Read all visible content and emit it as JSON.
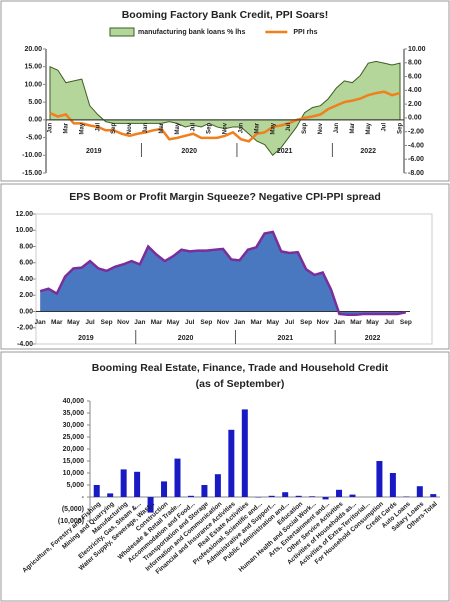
{
  "chart_data": [
    {
      "type": "line",
      "title": "Booming Factory Bank Credit, PPI Soars!",
      "legend": "top",
      "categories": [
        "Jan",
        null,
        "Mar",
        null,
        "May",
        null,
        "Jul",
        null,
        "Sep",
        null,
        "Nov",
        null,
        "Jan",
        null,
        "Mar",
        null,
        "May",
        null,
        "Jul",
        null,
        "Sep",
        null,
        "Nov",
        null,
        "Jan",
        null,
        "Mar",
        null,
        "May",
        null,
        "Jul",
        null,
        "Sep",
        null,
        "Nov",
        null,
        "Jan",
        null,
        "Mar",
        null,
        "May",
        null,
        "Jul",
        null,
        "Sep"
      ],
      "x_groups": [
        "2019",
        "2020",
        "2021",
        "2022"
      ],
      "series": [
        {
          "name": "manufacturing bank loans % lhs",
          "type": "area",
          "color": "#b4d69a",
          "line_color": "#3e5e22",
          "values": [
            15,
            14,
            10.5,
            11,
            11.5,
            4,
            1.5,
            -0.5,
            -1,
            -1,
            -1,
            -1,
            -1,
            -1,
            -1,
            -0.5,
            -1,
            -2,
            -1.5,
            -2,
            -1,
            -2,
            -2.5,
            -2,
            -2,
            -4,
            -6,
            -7,
            -10,
            -8,
            -5,
            -2,
            2,
            3.5,
            4,
            6,
            9,
            11,
            10.5,
            12.5,
            16,
            16.5,
            16,
            15.5,
            16
          ]
        },
        {
          "name": "PPI rhs",
          "axis": "y2",
          "color": "#f07f1e",
          "values": [
            0.7,
            0.2,
            0.5,
            -0.8,
            -0.8,
            -1.1,
            -1.3,
            -1.8,
            -1.8,
            -2.3,
            -2.6,
            -2.3,
            -2.1,
            -1.8,
            -1.6,
            -3.1,
            -2.9,
            -2.6,
            -2.3,
            -2.9,
            -2.9,
            -2.9,
            -2.6,
            -2.1,
            -3.1,
            -3.4,
            -2.3,
            -2.1,
            -1.3,
            -1.1,
            -0.8,
            -0.3,
            0,
            0.2,
            0.5,
            1.3,
            1.8,
            2.3,
            2.5,
            2.8,
            3.3,
            3.6,
            3.8,
            3.3,
            3.6
          ]
        }
      ],
      "ylim": [
        -15,
        20
      ],
      "yticks": [
        {
          "value": -15,
          "label": "-15.00"
        },
        {
          "value": -10,
          "label": "-10.00"
        },
        {
          "value": -5,
          "label": "-5.00"
        },
        {
          "value": 0,
          "label": "0.00"
        },
        {
          "value": 5,
          "label": "5.00"
        },
        {
          "value": 10,
          "label": "10.00"
        },
        {
          "value": 15,
          "label": "15.00"
        },
        {
          "value": 20,
          "label": "20.00"
        }
      ],
      "y2lim": [
        -8,
        10
      ],
      "y2ticks": [
        {
          "value": -8,
          "label": "-8.00"
        },
        {
          "value": -6,
          "label": "-6.00"
        },
        {
          "value": -4,
          "label": "-4.00"
        },
        {
          "value": -2,
          "label": "-2.00"
        },
        {
          "value": 0,
          "label": "0.00"
        },
        {
          "value": 2,
          "label": "2.00"
        },
        {
          "value": 4,
          "label": "4.00"
        },
        {
          "value": 6,
          "label": "6.00"
        },
        {
          "value": 8,
          "label": "8.00"
        },
        {
          "value": 10,
          "label": "10.00"
        }
      ]
    },
    {
      "type": "area",
      "title": "EPS Boom or Profit Margin Squeeze? Negative CPI-PPI spread",
      "categories": [
        "Jan",
        null,
        "Mar",
        null,
        "May",
        null,
        "Jul",
        null,
        "Sep",
        null,
        "Nov",
        null,
        "Jan",
        null,
        "Mar",
        null,
        "May",
        null,
        "Jul",
        null,
        "Sep",
        null,
        "Nov",
        null,
        "Jan",
        null,
        "Mar",
        null,
        "May",
        null,
        "Jul",
        null,
        "Sep",
        null,
        "Nov",
        null,
        "Jan",
        null,
        "Mar",
        null,
        "May",
        null,
        "Jul",
        null,
        "Sep"
      ],
      "x_groups": [
        "2019",
        "2020",
        "2021",
        "2022"
      ],
      "color": "#4a78c0",
      "line_color": "#7b2d9b",
      "values": [
        2.5,
        2.8,
        2.2,
        4.3,
        5.3,
        5.4,
        6.2,
        5.3,
        5.0,
        5.5,
        5.8,
        6.2,
        5.8,
        8.0,
        7.0,
        6.2,
        6.8,
        7.6,
        7.4,
        7.5,
        7.5,
        7.6,
        7.7,
        6.4,
        6.3,
        7.6,
        7.9,
        9.6,
        9.8,
        7.4,
        7.2,
        7.3,
        5.2,
        4.5,
        4.8,
        2.7,
        -0.3,
        -0.4,
        -0.4,
        -0.3,
        -0.3,
        -0.3,
        -0.3,
        -0.3,
        -0.1
      ],
      "ylim": [
        -4,
        12
      ],
      "yticks": [
        {
          "value": -4,
          "label": "-4.00"
        },
        {
          "value": -2,
          "label": "-2.00"
        },
        {
          "value": 0,
          "label": "0.00"
        },
        {
          "value": 2,
          "label": "2.00"
        },
        {
          "value": 4,
          "label": "4.00"
        },
        {
          "value": 6,
          "label": "6.00"
        },
        {
          "value": 8,
          "label": "8.00"
        },
        {
          "value": 10,
          "label": "10.00"
        },
        {
          "value": 12,
          "label": "12.00"
        }
      ]
    },
    {
      "type": "bar",
      "title": "Booming Real Estate,  Finance, Trade and Household Credit",
      "subtitle": "(as of September)",
      "color": "#1a1ac4",
      "categories": [
        "Agriculture, Forestry and Fishing",
        "Mining and Quarrying",
        "Manufacturing",
        "Electricity, Gas, Steam &...",
        "Water Supply, Sewerage, Wast...",
        "Construction",
        "Wholesale & Retail Trade...",
        "Accommodation and Food...",
        "Transportation and Storage",
        "Information and Communication",
        "Financial and Insurance Activities",
        "Real Estate Activities",
        "Professional, Scientific and...",
        "Administrative and Support...",
        "Public Administration and...",
        "Education",
        "Human Health and Social Work...",
        "Arts, Entertainment and...",
        "Other Service Activities",
        "Activities of Households as...",
        "Activities of Extra-Territorial...",
        "For Household Consumption",
        "Credit Cards",
        "Auto Loans",
        "Salary Loans",
        "Others-Total"
      ],
      "values": [
        5000,
        1500,
        11500,
        10500,
        -6500,
        6500,
        16000,
        500,
        5000,
        9500,
        28000,
        36500,
        -200,
        500,
        2000,
        500,
        300,
        -1000,
        3000,
        1000,
        0,
        15000,
        10000,
        200,
        4500,
        1200
      ],
      "ylim": [
        -10000,
        40000
      ],
      "yticks": [
        {
          "value": -10000,
          "label": "(10,000)"
        },
        {
          "value": -5000,
          "label": "(5,000)"
        },
        {
          "value": 0,
          "label": "-"
        },
        {
          "value": 5000,
          "label": "5,000"
        },
        {
          "value": 10000,
          "label": "10,000"
        },
        {
          "value": 15000,
          "label": "15,000"
        },
        {
          "value": 20000,
          "label": "20,000"
        },
        {
          "value": 25000,
          "label": "25,000"
        },
        {
          "value": 30000,
          "label": "30,000"
        },
        {
          "value": 35000,
          "label": "35,000"
        },
        {
          "value": 40000,
          "label": "40,000"
        }
      ]
    }
  ]
}
